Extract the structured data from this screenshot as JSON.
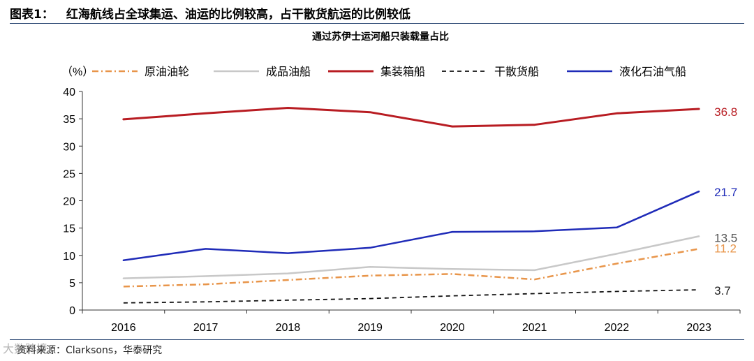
{
  "figure": {
    "label": "图表1：",
    "heading": "红海航线占全球集运、油运的比例较高，占干散货航运的比例较低"
  },
  "source": "资料来源：Clarksons，华泰研究",
  "watermark": "大数跨境",
  "colors": {
    "rule": "#1f3d6b"
  },
  "chart_data": {
    "type": "line",
    "title": "通过苏伊士运河船只装载量占比",
    "ylabel": "（%）",
    "xlabel": "",
    "ylim": [
      0,
      40
    ],
    "yticks": [
      0,
      5,
      10,
      15,
      20,
      25,
      30,
      35,
      40
    ],
    "grid": false,
    "legend_position": "top",
    "categories": [
      "2016",
      "2017",
      "2018",
      "2019",
      "2020",
      "2021",
      "2022",
      "2023"
    ],
    "series": [
      {
        "name": "原油油轮",
        "color": "#e8954a",
        "dash": "9,4,2,4",
        "width": 2.5,
        "values": [
          4.3,
          4.7,
          5.5,
          6.3,
          6.6,
          5.6,
          8.5,
          11.2
        ],
        "end_label": "11.2",
        "end_label_color": "#e8954a"
      },
      {
        "name": "成品油船",
        "color": "#c8c8c8",
        "dash": "",
        "width": 2.5,
        "values": [
          5.8,
          6.2,
          6.7,
          7.9,
          7.5,
          7.3,
          10.3,
          13.5
        ],
        "end_label": "13.5",
        "end_label_color": "#555555"
      },
      {
        "name": "集装箱船",
        "color": "#b81c22",
        "dash": "",
        "width": 3,
        "values": [
          34.9,
          36.0,
          37.0,
          36.2,
          33.6,
          33.9,
          36.0,
          36.8
        ],
        "end_label": "36.8",
        "end_label_color": "#b81c22"
      },
      {
        "name": "干散货船",
        "color": "#111111",
        "dash": "6,5",
        "width": 1.8,
        "values": [
          1.3,
          1.5,
          1.8,
          2.1,
          2.6,
          3.0,
          3.4,
          3.7
        ],
        "end_label": "3.7",
        "end_label_color": "#222222"
      },
      {
        "name": "液化石油气船",
        "color": "#1f2bb8",
        "dash": "",
        "width": 2.5,
        "values": [
          9.1,
          11.2,
          10.4,
          11.4,
          14.3,
          14.4,
          15.1,
          21.7
        ],
        "end_label": "21.7",
        "end_label_color": "#1f2bb8"
      }
    ]
  }
}
